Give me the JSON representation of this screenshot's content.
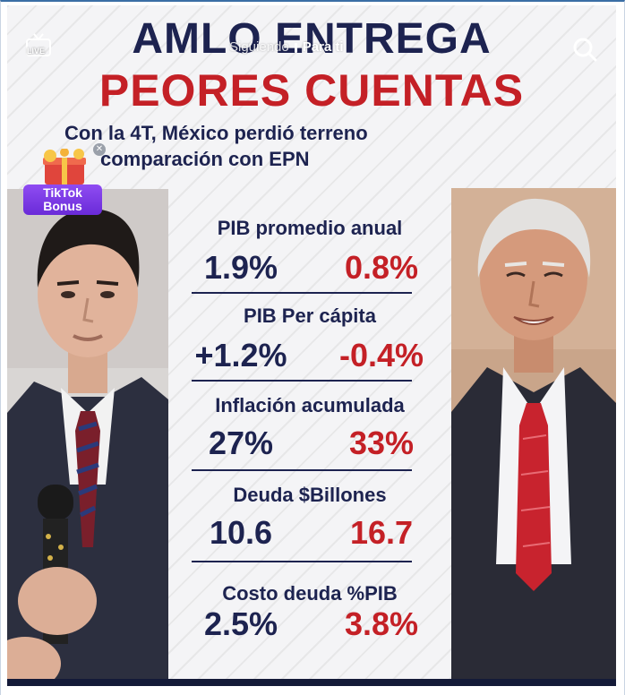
{
  "overlay": {
    "live_label": "LIVE",
    "tab_following": "Siguiendo",
    "tab_for_you": "Para ti",
    "bonus_label_line1": "TikTok",
    "bonus_label_line2": "Bonus"
  },
  "headline": {
    "line1": "AMLO ENTREGA",
    "line2": "PEORES CUENTAS",
    "subtitle_line1": "Con la 4T, México perdió terreno",
    "subtitle_line2": "comparación con EPN"
  },
  "stats": [
    {
      "label": "PIB promedio anual",
      "epn": "1.9%",
      "amlo": "0.8%"
    },
    {
      "label": "PIB Per cápita",
      "epn": "+1.2%",
      "amlo": "-0.4%"
    },
    {
      "label": "Inflación acumulada",
      "epn": "27%",
      "amlo": "33%"
    },
    {
      "label": "Deuda $Billones",
      "epn": "10.6",
      "amlo": "16.7"
    },
    {
      "label": "Costo deuda %PIB",
      "epn": "2.5%",
      "amlo": "3.8%"
    }
  ],
  "colors": {
    "navy": "#1d2350",
    "red": "#c42026",
    "bonus_purple": "#7a36e6"
  },
  "icons": {
    "live": "live-tv-icon",
    "search": "search-icon",
    "bonus": "gift-box-icon"
  }
}
